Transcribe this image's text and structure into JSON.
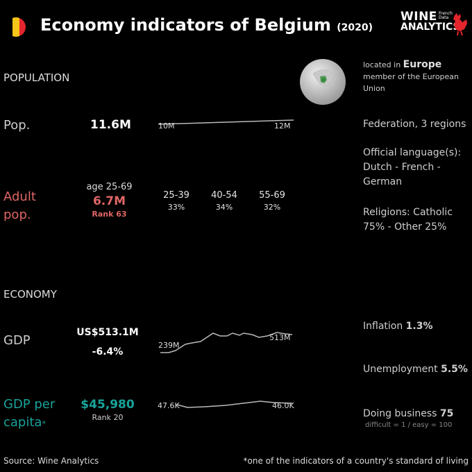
{
  "header": {
    "title": "Economy indicators of Belgium",
    "year": "(2020)",
    "flag_colors": [
      "#000000",
      "#f5c518",
      "#e4252c"
    ],
    "logo": {
      "line1": "WINE",
      "line2": "ANALYTICS",
      "tag": [
        "French",
        "Data"
      ]
    }
  },
  "population": {
    "section_label": "POPULATION",
    "pop_label": "Pop.",
    "pop_value": "11.6M",
    "trend_start": "10M",
    "trend_end": "12M",
    "adult_label_line1": "Adult",
    "adult_label_line2": "pop.",
    "adult_age": "age 25-69",
    "adult_value": "6.7M",
    "adult_rank": "Rank 63",
    "age_groups": [
      {
        "range": "25-39",
        "pct": "33%"
      },
      {
        "range": "40-54",
        "pct": "34%"
      },
      {
        "range": "55-69",
        "pct": "32%"
      }
    ]
  },
  "location": {
    "located_in": "located in",
    "continent": "Europe",
    "member": "member of the European Union",
    "government": "Federation, 3 regions",
    "language_label": "Official language(s):",
    "languages": "Dutch - French - German",
    "religions": "Religions: Catholic 75% - Other 25%"
  },
  "economy": {
    "section_label": "ECONOMY",
    "gdp_label": "GDP",
    "gdp_value": "US$513.1M",
    "gdp_change": "-6.4%",
    "gdp_trend_start": "239M",
    "gdp_trend_end": "513M",
    "gdppc_label_line1": "GDP per",
    "gdppc_label_line2": "capita",
    "gdppc_star": "*",
    "gdppc_value": "$45,980",
    "gdppc_rank": "Rank 20",
    "gdppc_trend_start": "47.6K",
    "gdppc_trend_end": "46.0K",
    "inflation_label": "Inflation",
    "inflation_value": "1.3%",
    "unemployment_label": "Unemployment",
    "unemployment_value": "5.5%",
    "doing_business_label": "Doing business",
    "doing_business_value": "75",
    "doing_business_note": "difficult = 1 / easy = 100"
  },
  "colors": {
    "adult": "#e06666",
    "gdppc": "#19a39a",
    "trend": "#bbbbbb"
  },
  "footer": {
    "source": "Source: Wine  Analytics",
    "note": "*one of the indicators of a country's standard of living"
  }
}
